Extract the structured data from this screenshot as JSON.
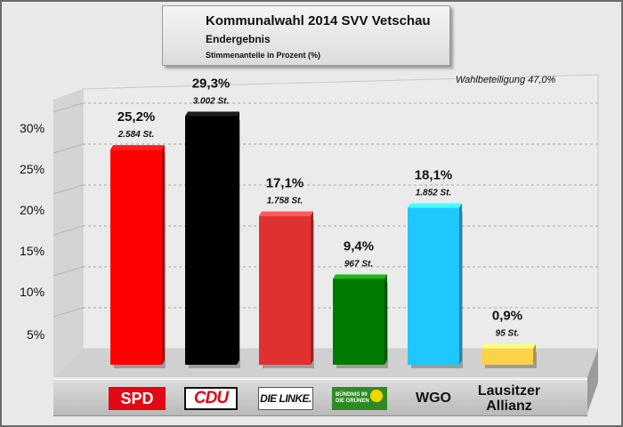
{
  "header": {
    "title": "Kommunalwahl 2014 SVV Vetschau",
    "subtitle": "Endergebnis",
    "caption": "Stimmenanteile in Prozent (%)"
  },
  "turnout_label": "Wahlbeteiligung 47,0%",
  "chart_data": {
    "type": "bar",
    "title": "Kommunalwahl 2014 SVV Vetschau",
    "subtitle": "Endergebnis",
    "ylabel": "Stimmenanteile in Prozent (%)",
    "ylim": [
      0,
      30
    ],
    "yticks": [
      "5%",
      "10%",
      "15%",
      "20%",
      "25%",
      "30%"
    ],
    "grid": true,
    "categories": [
      "SPD",
      "CDU",
      "DIE LINKE.",
      "BÜNDNIS 90 DIE GRÜNEN",
      "WGO",
      "Lausitzer Allianz"
    ],
    "values": [
      25.2,
      29.3,
      17.1,
      9.4,
      18.1,
      0.9
    ],
    "value_labels": [
      "25,2%",
      "29,3%",
      "17,1%",
      "9,4%",
      "18,1%",
      "0,9%"
    ],
    "votes": [
      2584,
      3002,
      1758,
      967,
      1852,
      95
    ],
    "vote_labels": [
      "2.584 St.",
      "3.002 St.",
      "1.758 St.",
      "967 St.",
      "1.852 St.",
      "95 St."
    ],
    "colors": [
      "#ff0000",
      "#000000",
      "#e03030",
      "#007a00",
      "#1ec8ff",
      "#ffd24a"
    ]
  },
  "logos": {
    "spd": "SPD",
    "cdu": "CDU",
    "linke": "DIE LINKE.",
    "gruene_line1": "BÜNDNIS 90",
    "gruene_line2": "DIE GRÜNEN",
    "wgo": "WGO",
    "la_line1": "Lausitzer",
    "la_line2": "Allianz"
  }
}
